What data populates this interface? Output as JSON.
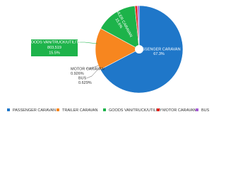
{
  "chart_data": {
    "type": "pie",
    "categories": [
      "PASSENGER CARAVAN",
      "TRAILER CARAVAN",
      "GOODS VAN/TRUCK/UTILITY",
      "MOTOR CARAVAN",
      "BUS"
    ],
    "values": [
      67.3,
      15.6,
      15.5,
      0.926,
      0.629
    ],
    "value_labels": [
      "67.3%",
      "15.6%",
      "15.5%",
      "0.926%",
      "0.629%"
    ],
    "colors": [
      "#1f77c9",
      "#f7861f",
      "#1db34a",
      "#e3231b",
      "#a55bd3"
    ],
    "goods_count": {
      "value": 803519,
      "label": "803,519"
    },
    "legend": "bottom"
  }
}
